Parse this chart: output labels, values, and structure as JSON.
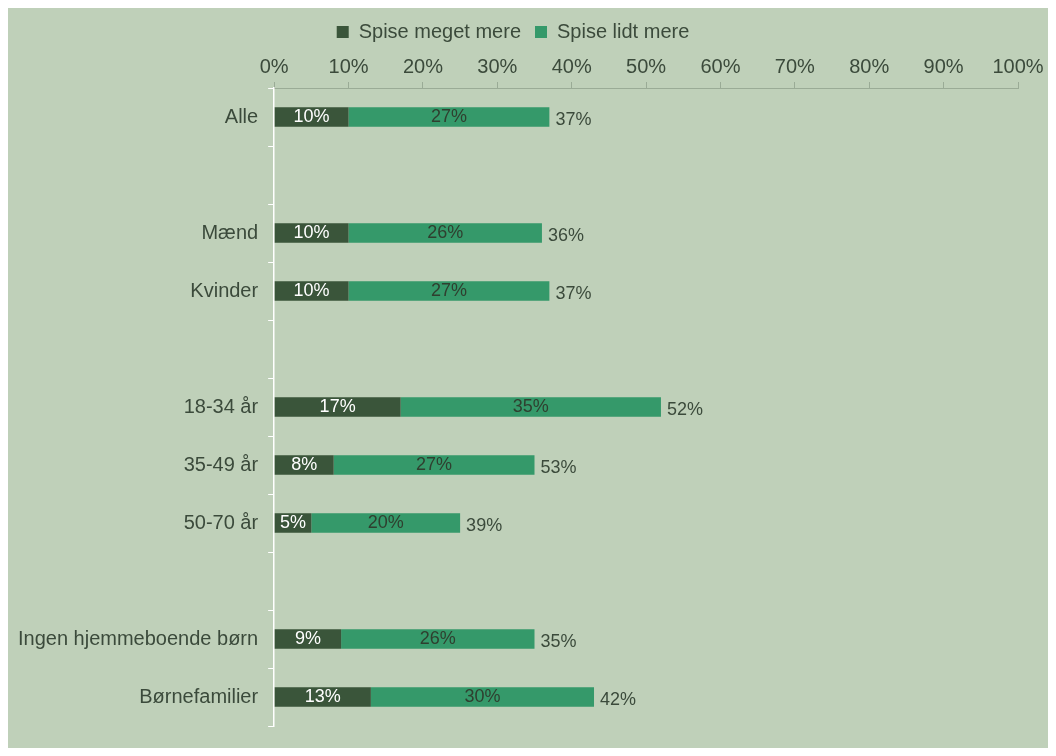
{
  "chart_data": {
    "type": "bar",
    "orientation": "horizontal",
    "stacked": true,
    "legend": "top",
    "grid": false,
    "categories": [
      "Alle",
      null,
      "Mænd",
      "Kvinder",
      null,
      "18-34 år",
      "35-49 år",
      "50-70 år",
      null,
      "Ingen hjemmeboende børn",
      "Børnefamilier"
    ],
    "xlim": [
      0,
      100
    ],
    "xticks": [
      {
        "value": 0,
        "label": "0%"
      },
      {
        "value": 10,
        "label": "10%"
      },
      {
        "value": 20,
        "label": "20%"
      },
      {
        "value": 30,
        "label": "30%"
      },
      {
        "value": 40,
        "label": "40%"
      },
      {
        "value": 50,
        "label": "50%"
      },
      {
        "value": 60,
        "label": "60%"
      },
      {
        "value": 70,
        "label": "70%"
      },
      {
        "value": 80,
        "label": "80%"
      },
      {
        "value": 90,
        "label": "90%"
      },
      {
        "value": 100,
        "label": "100%"
      }
    ],
    "series": [
      {
        "name": "Spise meget mere",
        "color": "#3a553a",
        "values": [
          10,
          null,
          10,
          10,
          null,
          17,
          8,
          5,
          null,
          9,
          13
        ],
        "value_labels": [
          "10%",
          null,
          "10%",
          "10%",
          null,
          "17%",
          "8%",
          "5%",
          null,
          "9%",
          "13%"
        ]
      },
      {
        "name": "Spise lidt mere",
        "color": "#35996a",
        "values": [
          27,
          null,
          26,
          27,
          null,
          35,
          27,
          20,
          null,
          26,
          30
        ],
        "value_labels": [
          "27%",
          null,
          "26%",
          "27%",
          null,
          "35%",
          "27%",
          "20%",
          null,
          "26%",
          "30%"
        ]
      }
    ],
    "annotations": [
      {
        "text": "37%",
        "x": 37,
        "y": "Alle"
      },
      {
        "text": "36%",
        "x": 36,
        "y": "Mænd"
      },
      {
        "text": "37%",
        "x": 37,
        "y": "Kvinder"
      },
      {
        "text": "52%",
        "x": 52,
        "y": "18-34 år"
      },
      {
        "text": "53%",
        "x": 35,
        "y": "35-49 år"
      },
      {
        "text": "39%",
        "x": 25,
        "y": "50-70 år"
      },
      {
        "text": "35%",
        "x": 35,
        "y": "Ingen hjemmeboende børn"
      },
      {
        "text": "42%",
        "x": 43,
        "y": "Børnefamilier"
      }
    ]
  }
}
